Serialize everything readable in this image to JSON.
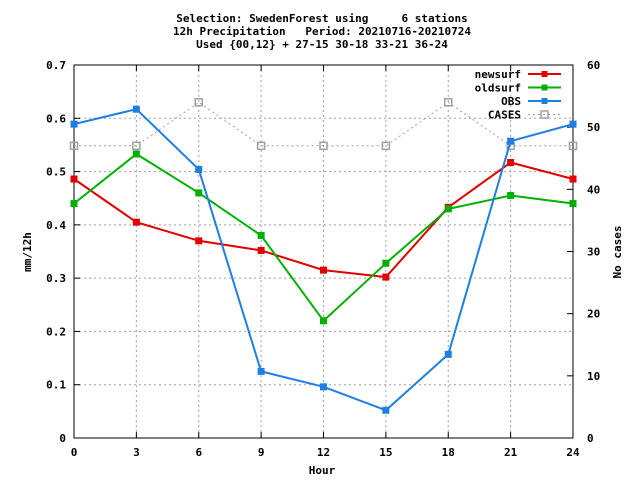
{
  "chart_data": {
    "type": "line",
    "title_lines": [
      "Selection: SwedenForest using     6 stations",
      "12h Precipitation   Period: 20210716-20210724",
      "Used {00,12} + 27-15 30-18 33-21 36-24"
    ],
    "xlabel": "Hour",
    "ylabel": "mm/12h",
    "y2label": "No cases",
    "x": [
      0,
      3,
      6,
      9,
      12,
      15,
      18,
      21,
      24
    ],
    "xlim": [
      0,
      24
    ],
    "ylim": [
      0,
      0.7
    ],
    "y2lim": [
      0,
      60
    ],
    "x_ticks": [
      "0",
      "3",
      "6",
      "9",
      "12",
      "15",
      "18",
      "21",
      "24"
    ],
    "y_ticks": [
      "0",
      "0.1",
      "0.2",
      "0.3",
      "0.4",
      "0.5",
      "0.6",
      "0.7"
    ],
    "y2_ticks": [
      "0",
      "10",
      "20",
      "30",
      "40",
      "50",
      "60"
    ],
    "grid": true,
    "legend_position": "top-right",
    "series": [
      {
        "name": "newsurf",
        "axis": "left",
        "color": "#e00000",
        "marker": "filled-square",
        "line": "solid",
        "values": [
          0.486,
          0.405,
          0.37,
          0.352,
          0.315,
          0.302,
          0.433,
          0.517,
          0.486
        ]
      },
      {
        "name": "oldsurf",
        "axis": "left",
        "color": "#00b000",
        "marker": "filled-square",
        "line": "solid",
        "values": [
          0.44,
          0.533,
          0.46,
          0.38,
          0.22,
          0.328,
          0.43,
          0.455,
          0.44
        ]
      },
      {
        "name": "OBS",
        "axis": "left",
        "color": "#1e7fe0",
        "marker": "filled-square",
        "line": "solid",
        "values": [
          0.589,
          0.617,
          0.504,
          0.125,
          0.096,
          0.052,
          0.157,
          0.557,
          0.589
        ]
      },
      {
        "name": "CASES",
        "axis": "right",
        "color": "#a0a0a0",
        "marker": "open-square",
        "line": "dotted",
        "values": [
          47,
          47,
          54,
          47,
          47,
          47,
          54,
          47,
          47
        ]
      }
    ]
  }
}
